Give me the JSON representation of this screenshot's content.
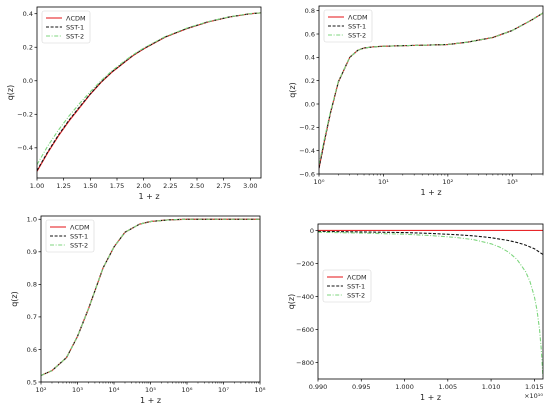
{
  "chart_data": [
    {
      "type": "line",
      "xlabel": "1 + z",
      "ylabel": "q(z)",
      "xscale": "linear",
      "xlim": [
        1.0,
        3.1
      ],
      "ylim": [
        -0.58,
        0.44
      ],
      "xticks": [
        1.0,
        1.25,
        1.5,
        1.75,
        2.0,
        2.25,
        2.5,
        2.75,
        3.0
      ],
      "xtick_labels": [
        "1.00",
        "1.25",
        "1.50",
        "1.75",
        "2.00",
        "2.25",
        "2.50",
        "2.75",
        "3.00"
      ],
      "yticks": [
        -0.4,
        -0.2,
        0.0,
        0.2,
        0.4
      ],
      "ytick_labels": [
        "−0.4",
        "−0.2",
        "0.0",
        "0.2",
        "0.4"
      ],
      "legend": "top-left",
      "series": [
        {
          "name": "ΛCDM",
          "color": "#e8262a",
          "style": "solid",
          "x": [
            1.0,
            1.1,
            1.2,
            1.3,
            1.4,
            1.5,
            1.6,
            1.7,
            1.8,
            1.9,
            2.0,
            2.2,
            2.4,
            2.6,
            2.8,
            3.0,
            3.1
          ],
          "y": [
            -0.54,
            -0.43,
            -0.33,
            -0.24,
            -0.16,
            -0.08,
            -0.01,
            0.05,
            0.1,
            0.15,
            0.19,
            0.26,
            0.31,
            0.35,
            0.38,
            0.4,
            0.405
          ]
        },
        {
          "name": "SST-1",
          "color": "#111111",
          "style": "dashed",
          "x": [
            1.0,
            1.1,
            1.2,
            1.3,
            1.4,
            1.5,
            1.6,
            1.7,
            1.8,
            1.9,
            2.0,
            2.2,
            2.4,
            2.6,
            2.8,
            3.0,
            3.1
          ],
          "y": [
            -0.535,
            -0.425,
            -0.325,
            -0.235,
            -0.155,
            -0.078,
            -0.008,
            0.052,
            0.102,
            0.152,
            0.191,
            0.261,
            0.311,
            0.351,
            0.38,
            0.4,
            0.405
          ]
        },
        {
          "name": "SST-2",
          "color": "#7fd67f",
          "style": "dashdot",
          "x": [
            1.0,
            1.1,
            1.2,
            1.3,
            1.4,
            1.5,
            1.6,
            1.7,
            1.8,
            1.9,
            2.0,
            2.2,
            2.4,
            2.6,
            2.8,
            3.0,
            3.1
          ],
          "y": [
            -0.5,
            -0.39,
            -0.295,
            -0.21,
            -0.135,
            -0.065,
            0.0,
            0.058,
            0.108,
            0.155,
            0.195,
            0.263,
            0.313,
            0.352,
            0.381,
            0.401,
            0.405
          ]
        }
      ]
    },
    {
      "type": "line",
      "xlabel": "1 + z",
      "ylabel": "q(z)",
      "xscale": "log",
      "xlim": [
        1,
        3000
      ],
      "ylim": [
        -0.6,
        0.84
      ],
      "xticks": [
        1,
        10,
        100,
        1000
      ],
      "xtick_labels": [
        "10⁰",
        "10¹",
        "10²",
        "10³"
      ],
      "yticks": [
        -0.6,
        -0.4,
        -0.2,
        0.0,
        0.2,
        0.4,
        0.6,
        0.8
      ],
      "ytick_labels": [
        "−0.6",
        "−0.4",
        "−0.2",
        "0.0",
        "0.2",
        "0.4",
        "0.6",
        "0.8"
      ],
      "legend": "top-left",
      "series": [
        {
          "name": "ΛCDM",
          "color": "#e8262a",
          "style": "solid",
          "x": [
            1,
            1.2,
            1.5,
            2,
            3,
            4,
            5,
            7,
            10,
            20,
            50,
            100,
            200,
            500,
            1000,
            2000,
            3000
          ],
          "y": [
            -0.55,
            -0.33,
            -0.08,
            0.19,
            0.4,
            0.46,
            0.48,
            0.49,
            0.495,
            0.5,
            0.505,
            0.51,
            0.53,
            0.57,
            0.63,
            0.72,
            0.78
          ]
        },
        {
          "name": "SST-1",
          "color": "#111111",
          "style": "dashed",
          "x": [
            1,
            1.2,
            1.5,
            2,
            3,
            4,
            5,
            7,
            10,
            20,
            50,
            100,
            200,
            500,
            1000,
            2000,
            3000
          ],
          "y": [
            -0.55,
            -0.33,
            -0.08,
            0.19,
            0.4,
            0.46,
            0.48,
            0.49,
            0.495,
            0.5,
            0.505,
            0.51,
            0.53,
            0.57,
            0.63,
            0.72,
            0.78
          ]
        },
        {
          "name": "SST-2",
          "color": "#7fd67f",
          "style": "dashdot",
          "x": [
            1,
            1.2,
            1.5,
            2,
            3,
            4,
            5,
            7,
            10,
            20,
            50,
            100,
            200,
            500,
            1000,
            2000,
            3000
          ],
          "y": [
            -0.52,
            -0.31,
            -0.07,
            0.195,
            0.4,
            0.46,
            0.48,
            0.49,
            0.495,
            0.5,
            0.505,
            0.51,
            0.53,
            0.57,
            0.63,
            0.72,
            0.78
          ]
        }
      ]
    },
    {
      "type": "line",
      "xlabel": "1 + z",
      "ylabel": "q(z)",
      "xscale": "log",
      "xlim": [
        100,
        100000000
      ],
      "ylim": [
        0.5,
        1.01
      ],
      "xticks": [
        100,
        1000,
        10000,
        100000,
        1000000,
        10000000,
        100000000
      ],
      "xtick_labels": [
        "10²",
        "10³",
        "10⁴",
        "10⁵",
        "10⁶",
        "10⁷",
        "10⁸"
      ],
      "yticks": [
        0.5,
        0.6,
        0.7,
        0.8,
        0.9,
        1.0
      ],
      "ytick_labels": [
        "0.5",
        "0.6",
        "0.7",
        "0.8",
        "0.9",
        "1.0"
      ],
      "legend": "top-left",
      "series": [
        {
          "name": "ΛCDM",
          "color": "#e8262a",
          "style": "solid",
          "x": [
            100,
            200,
            500,
            1000,
            2000,
            3000,
            5000,
            10000,
            20000,
            50000,
            100000,
            300000,
            1000000,
            10000000,
            100000000
          ],
          "y": [
            0.52,
            0.535,
            0.575,
            0.64,
            0.725,
            0.78,
            0.85,
            0.915,
            0.96,
            0.985,
            0.993,
            0.998,
            1.0,
            1.0,
            1.0
          ]
        },
        {
          "name": "SST-1",
          "color": "#111111",
          "style": "dashed",
          "x": [
            100,
            200,
            500,
            1000,
            2000,
            3000,
            5000,
            10000,
            20000,
            50000,
            100000,
            300000,
            1000000,
            10000000,
            100000000
          ],
          "y": [
            0.52,
            0.535,
            0.575,
            0.64,
            0.725,
            0.78,
            0.85,
            0.915,
            0.96,
            0.985,
            0.993,
            0.998,
            1.0,
            1.0,
            1.0
          ]
        },
        {
          "name": "SST-2",
          "color": "#7fd67f",
          "style": "dashdot",
          "x": [
            100,
            200,
            500,
            1000,
            2000,
            3000,
            5000,
            10000,
            20000,
            50000,
            100000,
            300000,
            1000000,
            10000000,
            100000000
          ],
          "y": [
            0.52,
            0.535,
            0.575,
            0.64,
            0.725,
            0.78,
            0.85,
            0.915,
            0.96,
            0.985,
            0.993,
            0.998,
            1.0,
            1.0,
            1.0
          ]
        }
      ]
    },
    {
      "type": "line",
      "xlabel": "1 + z",
      "ylabel": "q(z)",
      "xscale": "linear",
      "xlim": [
        0.99,
        1.016
      ],
      "ylim": [
        -900,
        40
      ],
      "xticks": [
        0.99,
        0.995,
        1.0,
        1.005,
        1.01,
        1.015
      ],
      "xtick_labels": [
        "0.990",
        "0.995",
        "1.000",
        "1.005",
        "1.010",
        "1.015"
      ],
      "x_offset_label": "×10¹⁰",
      "yticks": [
        -800,
        -600,
        -400,
        -200,
        0
      ],
      "ytick_labels": [
        "−800",
        "−600",
        "−400",
        "−200",
        "0"
      ],
      "legend": "center-left",
      "series": [
        {
          "name": "ΛCDM",
          "color": "#e8262a",
          "style": "solid",
          "x": [
            0.99,
            1.016
          ],
          "y": [
            1,
            1
          ]
        },
        {
          "name": "SST-1",
          "color": "#111111",
          "style": "dashed",
          "x": [
            0.99,
            0.995,
            1.0,
            1.003,
            1.006,
            1.008,
            1.01,
            1.012,
            1.013,
            1.014,
            1.015,
            1.016
          ],
          "y": [
            -5,
            -8,
            -12,
            -17,
            -25,
            -32,
            -43,
            -60,
            -72,
            -88,
            -110,
            -145
          ]
        },
        {
          "name": "SST-2",
          "color": "#7fd67f",
          "style": "dashdot",
          "x": [
            0.99,
            0.995,
            1.0,
            1.003,
            1.006,
            1.008,
            1.01,
            1.011,
            1.012,
            1.013,
            1.014,
            1.0145,
            1.015,
            1.0153,
            1.0156,
            1.0158,
            1.016
          ],
          "y": [
            -10,
            -15,
            -22,
            -30,
            -42,
            -55,
            -80,
            -100,
            -130,
            -175,
            -250,
            -310,
            -400,
            -480,
            -600,
            -720,
            -890
          ]
        }
      ]
    }
  ]
}
